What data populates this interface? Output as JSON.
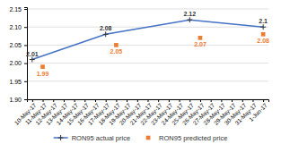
{
  "chart_data": {
    "type": "line",
    "categories": [
      "10-May-17",
      "11-May-17",
      "12-May-17",
      "13-May-17",
      "14-May-17",
      "15-May-17",
      "16-May-17",
      "17-May-17",
      "18-May-17",
      "19-May-17",
      "20-May-17",
      "21-May-17",
      "22-May-17",
      "23-May-17",
      "24-May-17",
      "25-May-17",
      "26-May-17",
      "27-May-17",
      "28-May-17",
      "29-May-17",
      "30-May-17",
      "31-May-17",
      "1-Jun-17"
    ],
    "series": [
      {
        "name": "RON95 actual price",
        "type": "line",
        "color": "#4472C4",
        "marker": "plus",
        "x": [
          "10-May-17",
          "17-May-17",
          "25-May-17",
          "1-Jun-17"
        ],
        "values": [
          2.01,
          2.08,
          2.12,
          2.1
        ]
      },
      {
        "name": "RON95 predicted price",
        "type": "scatter",
        "color": "#ED7D31",
        "marker": "square",
        "x": [
          "11-May-17",
          "18-May-17",
          "26-May-17",
          "1-Jun-17"
        ],
        "values": [
          1.99,
          2.05,
          2.07,
          2.08
        ]
      }
    ],
    "ylim": [
      1.9,
      2.155
    ],
    "yticks": [
      {
        "value": 1.9,
        "label": "1.90"
      },
      1.95,
      {
        "value": 2,
        "label": "2.00"
      },
      2.05,
      {
        "value": 2.1,
        "label": "2.10"
      },
      2.15
    ],
    "grid": true,
    "data_labels": true,
    "legend": "bottom"
  }
}
